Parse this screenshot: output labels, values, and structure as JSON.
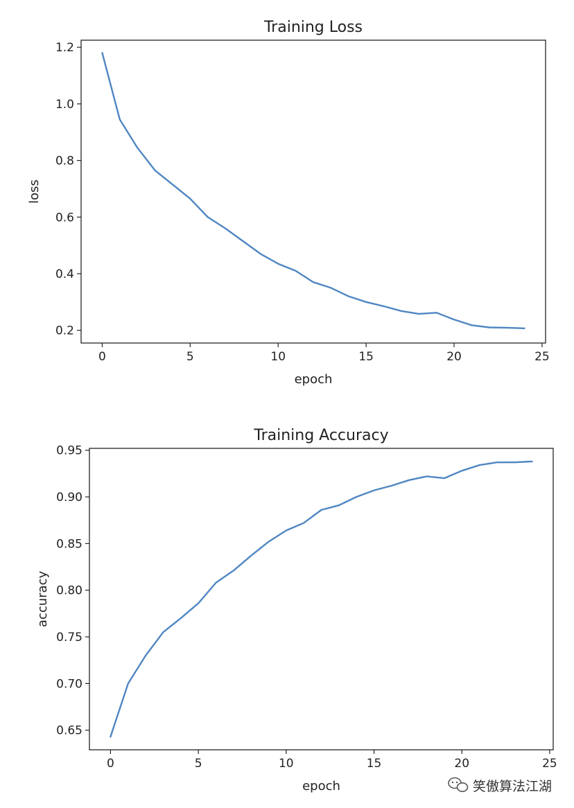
{
  "line_color": "#4f86c2",
  "chart_data": [
    {
      "type": "line",
      "title": "Training Loss",
      "xlabel": "epoch",
      "ylabel": "loss",
      "xlim": [
        -1.2,
        25.2
      ],
      "ylim": [
        0.155,
        1.225
      ],
      "xticks": [
        0,
        5,
        10,
        15,
        20,
        25
      ],
      "xtick_labels": [
        "0",
        "5",
        "10",
        "15",
        "20",
        "25"
      ],
      "yticks": [
        0.2,
        0.4,
        0.6,
        0.8,
        1.0,
        1.2
      ],
      "ytick_labels": [
        "0.2",
        "0.4",
        "0.6",
        "0.8",
        "1.0",
        "1.2"
      ],
      "grid": false,
      "series": [
        {
          "x": [
            0,
            1,
            2,
            3,
            4,
            5,
            6,
            7,
            8,
            9,
            10,
            11,
            12,
            13,
            14,
            15,
            16,
            17,
            18,
            19,
            20,
            21,
            22,
            23,
            24
          ],
          "values": [
            1.18,
            0.945,
            0.845,
            0.765,
            0.715,
            0.665,
            0.6,
            0.56,
            0.515,
            0.47,
            0.435,
            0.41,
            0.37,
            0.35,
            0.32,
            0.3,
            0.285,
            0.268,
            0.258,
            0.262,
            0.238,
            0.218,
            0.21,
            0.209,
            0.207
          ]
        }
      ]
    },
    {
      "type": "line",
      "title": "Training Accuracy",
      "xlabel": "epoch",
      "ylabel": "accuracy",
      "xlim": [
        -1.2,
        25.2
      ],
      "ylim": [
        0.629,
        0.952
      ],
      "xticks": [
        0,
        5,
        10,
        15,
        20,
        25
      ],
      "xtick_labels": [
        "0",
        "5",
        "10",
        "15",
        "20",
        "25"
      ],
      "yticks": [
        0.65,
        0.7,
        0.75,
        0.8,
        0.85,
        0.9,
        0.95
      ],
      "ytick_labels": [
        "0.65",
        "0.70",
        "0.75",
        "0.80",
        "0.85",
        "0.90",
        "0.95"
      ],
      "grid": false,
      "series": [
        {
          "x": [
            0,
            1,
            2,
            3,
            4,
            5,
            6,
            7,
            8,
            9,
            10,
            11,
            12,
            13,
            14,
            15,
            16,
            17,
            18,
            19,
            20,
            21,
            22,
            23,
            24
          ],
          "values": [
            0.643,
            0.7,
            0.73,
            0.755,
            0.77,
            0.786,
            0.808,
            0.821,
            0.837,
            0.852,
            0.864,
            0.872,
            0.886,
            0.891,
            0.9,
            0.907,
            0.912,
            0.918,
            0.922,
            0.92,
            0.928,
            0.934,
            0.937,
            0.937,
            0.938
          ]
        }
      ]
    }
  ],
  "watermark": {
    "text": "笑傲算法江湖",
    "icon": "wechat-icon"
  }
}
